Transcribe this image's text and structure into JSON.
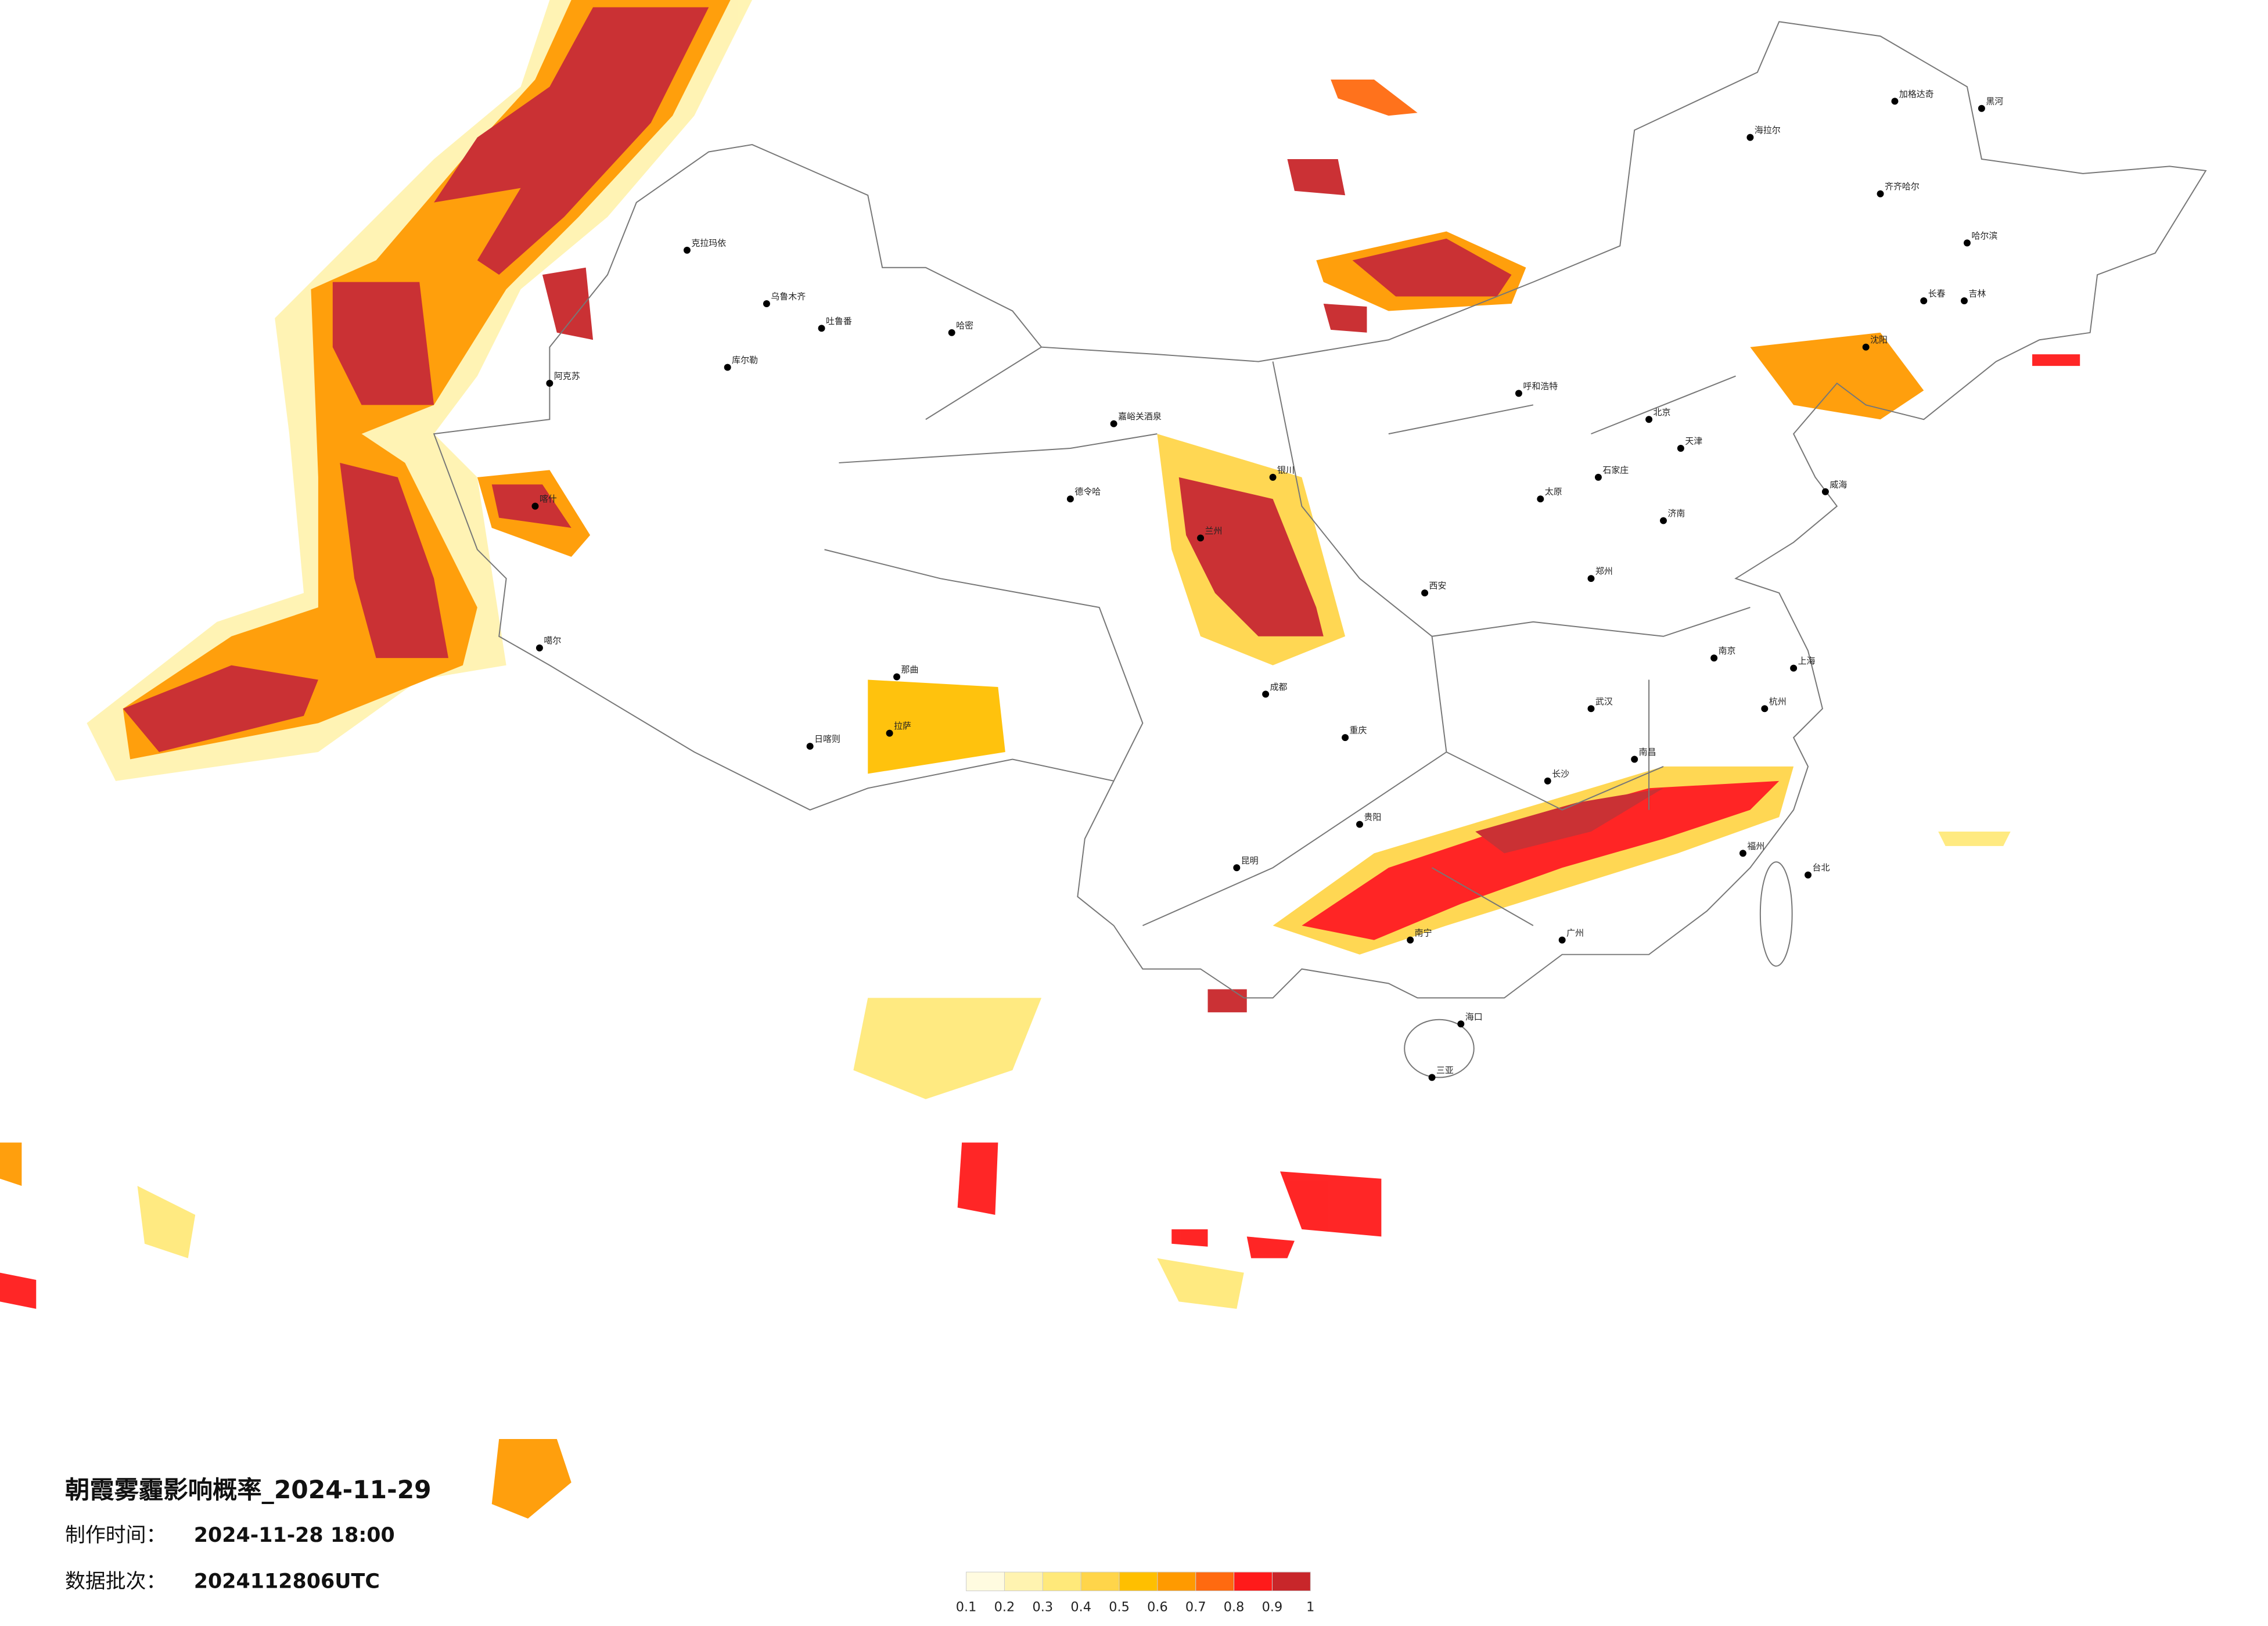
{
  "title": "朝霞雾霾影响概率_2024-11-29",
  "info": [
    {
      "label": "制作时间：",
      "value": "2024-11-28 18:00"
    },
    {
      "label": "数据批次：",
      "value": "2024112806UTC"
    }
  ],
  "legend": {
    "ticks": [
      0.1,
      0.2,
      0.3,
      0.4,
      0.5,
      0.6,
      0.7,
      0.8,
      0.9,
      1
    ],
    "colors": [
      "#fffbe0",
      "#fff3b0",
      "#ffe97a",
      "#ffd54a",
      "#ffbf00",
      "#ff9a00",
      "#ff6a10",
      "#ff1a1a",
      "#c8262a"
    ]
  },
  "cities": [
    "克拉玛依",
    "乌鲁木齐",
    "吐鲁番",
    "哈密",
    "库尔勒",
    "阿克苏",
    "喀什",
    "噶尔",
    "嘉峪关酒泉",
    "德令哈",
    "那曲",
    "拉萨",
    "日喀则",
    "海拉尔",
    "加格达奇",
    "黑河",
    "齐齐哈尔",
    "哈尔滨",
    "长春",
    "吉林",
    "沈阳",
    "威海",
    "北京",
    "天津",
    "石家庄",
    "太原",
    "郑州",
    "西安",
    "兰州",
    "银川",
    "呼和浩特",
    "济南",
    "南京",
    "上海",
    "杭州",
    "武汉",
    "长沙",
    "南昌",
    "福州",
    "台北",
    "广州",
    "南宁",
    "海口",
    "三亚",
    "昆明",
    "贵阳",
    "重庆",
    "成都"
  ]
}
